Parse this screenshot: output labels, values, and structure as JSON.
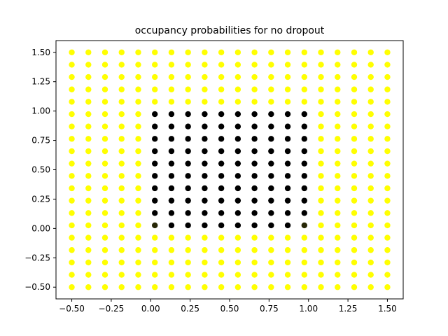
{
  "chart_data": {
    "type": "scatter",
    "title": "occupancy probabilities for no dropout",
    "xlabel": "",
    "ylabel": "",
    "xlim": [
      -0.6,
      1.6
    ],
    "ylim": [
      -0.6,
      1.6
    ],
    "x_ticks": [
      -0.5,
      -0.25,
      0.0,
      0.25,
      0.5,
      0.75,
      1.0,
      1.25,
      1.5
    ],
    "x_tick_labels": [
      "−0.50",
      "−0.25",
      "0.00",
      "0.25",
      "0.50",
      "0.75",
      "1.00",
      "1.25",
      "1.50"
    ],
    "y_ticks": [
      -0.5,
      -0.25,
      0.0,
      0.25,
      0.5,
      0.75,
      1.0,
      1.25,
      1.5
    ],
    "y_tick_labels": [
      "−0.50",
      "−0.25",
      "0.00",
      "0.25",
      "0.50",
      "0.75",
      "1.00",
      "1.25",
      "1.50"
    ],
    "grid": false,
    "grid_points": {
      "x": [
        -0.5,
        -0.3947,
        -0.2895,
        -0.1842,
        -0.0789,
        0.0263,
        0.1316,
        0.2368,
        0.3421,
        0.4474,
        0.5526,
        0.6579,
        0.7632,
        0.8684,
        0.9737,
        1.0789,
        1.1842,
        1.2895,
        1.3947,
        1.5
      ],
      "y": [
        -0.5,
        -0.3947,
        -0.2895,
        -0.1842,
        -0.0789,
        0.0263,
        0.1316,
        0.2368,
        0.3421,
        0.4474,
        0.5526,
        0.6579,
        0.7632,
        0.8684,
        0.9737,
        1.0789,
        1.1842,
        1.2895,
        1.3947,
        1.5
      ]
    },
    "occupied_region": {
      "x_range": [
        0.0263,
        0.9737
      ],
      "y_range": [
        0.0263,
        0.9737
      ]
    },
    "corner_points_partial": [
      [
        0.0263,
        0.0263
      ],
      [
        0.9737,
        0.0263
      ]
    ],
    "colors": {
      "free": "#ffff00",
      "occupied": "#000000",
      "partial": "#262605",
      "axis": "#000000"
    }
  }
}
